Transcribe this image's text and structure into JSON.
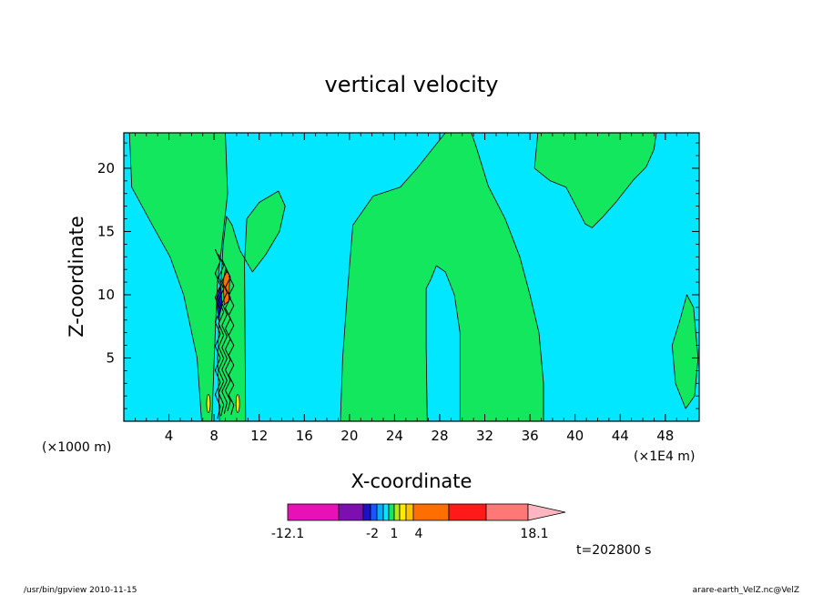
{
  "figure": {
    "title": "vertical velocity",
    "xlabel": "X-coordinate",
    "ylabel": "Z-coordinate",
    "x_unit_left": "(×1000 m)",
    "x_unit_right": "(×1E4 m)",
    "time_label": "t=202800 s",
    "footer_left": "/usr/bin/gpview   2010-11-15",
    "footer_right": "arare-earth_VelZ.nc@VelZ"
  },
  "colorbar": {
    "tick_labels": [
      "-12.1",
      "-2",
      "1",
      "4",
      "18.1"
    ],
    "colors": [
      "#e811b8",
      "#7d0fb0",
      "#1b12c8",
      "#1a55ff",
      "#00b0ff",
      "#00e7ff",
      "#12e75e",
      "#b8e712",
      "#ffea00",
      "#ffc400",
      "#ff6e00",
      "#ff1a1a",
      "#ff7878",
      "#ffb6c1"
    ]
  },
  "chart_data": {
    "type": "heatmap",
    "title": "vertical velocity",
    "xlabel": "X-coordinate",
    "ylabel": "Z-coordinate",
    "x_ticks": [
      4,
      8,
      12,
      16,
      20,
      24,
      28,
      32,
      36,
      40,
      44,
      48
    ],
    "y_ticks": [
      5,
      10,
      15,
      20
    ],
    "xlim": [
      0,
      51
    ],
    "ylim": [
      0,
      22.8
    ],
    "colors": {
      "background": "#00e7ff",
      "contour_fill": "#12e75e",
      "negative_core": "#1b12c8",
      "positive_core": "#ff6e00",
      "outline": "#000000"
    },
    "regions": [
      {
        "name": "left-plume",
        "points": [
          [
            0.5,
            22.8
          ],
          [
            9,
            22.8
          ],
          [
            9.2,
            18
          ],
          [
            8.7,
            14
          ],
          [
            8.3,
            11
          ],
          [
            8.1,
            7
          ],
          [
            7.8,
            0
          ],
          [
            6.9,
            0
          ],
          [
            6.5,
            5
          ],
          [
            5.3,
            10
          ],
          [
            4.1,
            13
          ],
          [
            2.6,
            15.4
          ],
          [
            0.7,
            18.5
          ]
        ]
      },
      {
        "name": "left-branch",
        "points": [
          [
            8.3,
            5
          ],
          [
            8.5,
            9
          ],
          [
            8.8,
            14
          ],
          [
            9.1,
            16.2
          ],
          [
            9.6,
            15.5
          ],
          [
            9.9,
            14.6
          ],
          [
            10.3,
            13.5
          ],
          [
            11.4,
            11.8
          ],
          [
            12.6,
            13.2
          ],
          [
            13.8,
            15
          ],
          [
            14.3,
            17
          ],
          [
            13.7,
            18.2
          ],
          [
            12,
            17.3
          ],
          [
            10.9,
            16
          ],
          [
            10.7,
            12.5
          ],
          [
            10.8,
            0
          ],
          [
            8.5,
            0
          ]
        ]
      },
      {
        "name": "center-plume",
        "points": [
          [
            19.2,
            0
          ],
          [
            19.4,
            5
          ],
          [
            19.8,
            10
          ],
          [
            20.3,
            15.5
          ],
          [
            22.1,
            17.8
          ],
          [
            24.5,
            18.5
          ],
          [
            26,
            20
          ],
          [
            28.5,
            22.8
          ],
          [
            30.8,
            22.8
          ],
          [
            31.2,
            21.8
          ],
          [
            32.3,
            18.6
          ],
          [
            33.8,
            16
          ],
          [
            35.1,
            13
          ],
          [
            36,
            10
          ],
          [
            36.8,
            7
          ],
          [
            37.2,
            3
          ],
          [
            37.2,
            0
          ],
          [
            29.8,
            0
          ],
          [
            29.8,
            7
          ],
          [
            29.3,
            10
          ],
          [
            28.5,
            11.8
          ],
          [
            27.7,
            12.3
          ],
          [
            27.2,
            11.2
          ],
          [
            26.8,
            10.5
          ],
          [
            26.8,
            6
          ],
          [
            26.9,
            0
          ]
        ]
      },
      {
        "name": "upper-right-cap",
        "points": [
          [
            36.7,
            22.8
          ],
          [
            36.4,
            20
          ],
          [
            37.8,
            19
          ],
          [
            39.2,
            18.5
          ],
          [
            40.2,
            16.8
          ],
          [
            40.9,
            15.6
          ],
          [
            41.5,
            15.3
          ],
          [
            42.4,
            16.1
          ],
          [
            43.6,
            17.3
          ],
          [
            45.2,
            19.1
          ],
          [
            46.3,
            20.1
          ],
          [
            47,
            21.5
          ],
          [
            47.2,
            22.8
          ]
        ]
      },
      {
        "name": "right-blob",
        "points": [
          [
            49.3,
            8
          ],
          [
            49.9,
            10
          ],
          [
            50.5,
            9
          ],
          [
            50.9,
            5
          ],
          [
            50.6,
            2
          ],
          [
            49.8,
            1
          ],
          [
            48.9,
            3
          ],
          [
            48.6,
            6
          ]
        ]
      }
    ],
    "cores": [
      {
        "name": "negative-core",
        "color": "#1b12c8",
        "points": [
          [
            8.2,
            9.5
          ],
          [
            8.6,
            10.8
          ],
          [
            8.7,
            9.2
          ],
          [
            8.4,
            8
          ]
        ]
      },
      {
        "name": "positive-core",
        "color": "#ff6e00",
        "points": [
          [
            9,
            12
          ],
          [
            9.4,
            11.5
          ],
          [
            9.3,
            9.5
          ],
          [
            8.9,
            9.2
          ],
          [
            8.8,
            11
          ]
        ]
      }
    ]
  }
}
